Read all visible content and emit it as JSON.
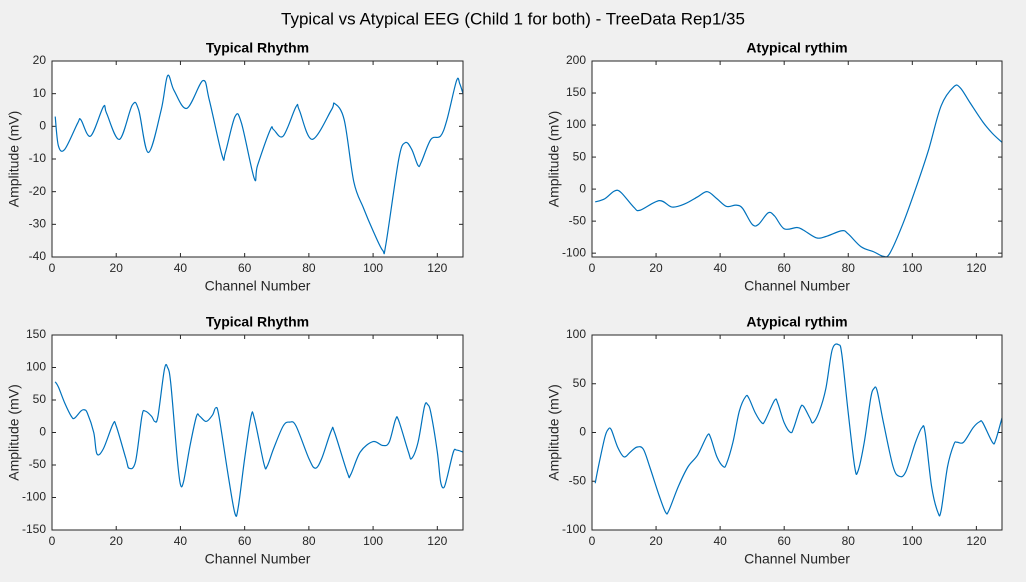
{
  "title": "Typical vs Atypical EEG (Child 1 for both) - TreeData Rep1/35",
  "chart_data": [
    {
      "type": "line",
      "title": "Typical Rhythm",
      "xlabel": "Channel Number",
      "ylabel": "Amplitude (mV)",
      "color": "#0072bd",
      "xlim": [
        0,
        128
      ],
      "xticks": [
        0,
        20,
        40,
        60,
        80,
        100,
        120
      ],
      "ylim": [
        -40,
        20
      ],
      "yticks": [
        -40,
        -30,
        -20,
        -10,
        0,
        10,
        20
      ],
      "x": [
        1,
        2,
        4,
        8,
        9,
        12,
        16,
        17,
        21,
        25,
        27,
        30,
        34,
        36,
        38,
        42,
        47,
        49,
        53,
        54,
        57,
        59,
        63,
        64,
        68,
        69,
        72,
        76,
        77,
        81,
        87,
        88,
        91,
        94,
        97,
        100,
        103,
        104,
        108,
        110,
        112,
        114,
        115,
        118,
        121,
        123,
        126,
        127,
        128
      ],
      "values": [
        3,
        -6,
        -7,
        1,
        2,
        -3,
        6,
        4,
        -4,
        6.5,
        5,
        -8,
        5,
        15.5,
        11,
        5.5,
        14,
        8,
        -9,
        -8,
        3,
        1,
        -16,
        -12,
        -1,
        -1,
        -3,
        6,
        5,
        -4,
        5,
        7,
        2,
        -17,
        -25,
        -32,
        -38,
        -36,
        -10,
        -5,
        -7,
        -12,
        -11,
        -4,
        -3,
        2,
        14,
        13,
        10
      ]
    },
    {
      "type": "line",
      "title": "Atypical rythim",
      "xlabel": "Channel Number",
      "ylabel": "Amplitude (mV)",
      "color": "#0072bd",
      "xlim": [
        0,
        128
      ],
      "xticks": [
        0,
        20,
        40,
        60,
        80,
        100,
        120
      ],
      "ylim": [
        -106,
        200
      ],
      "yticks": [
        -100,
        -50,
        0,
        50,
        100,
        150,
        200
      ],
      "x": [
        1,
        4,
        7,
        9,
        13,
        15,
        21,
        25,
        29,
        33,
        36,
        39,
        42,
        45,
        47,
        50,
        52,
        55,
        57,
        60,
        64,
        66,
        70,
        73,
        78,
        80,
        84,
        88,
        91,
        93,
        97,
        101,
        105,
        109,
        113,
        115,
        118,
        122,
        125,
        128
      ],
      "values": [
        -20,
        -15,
        -3,
        -5,
        -28,
        -33,
        -18,
        -28,
        -23,
        -12,
        -4,
        -15,
        -27,
        -25,
        -30,
        -55,
        -55,
        -37,
        -42,
        -62,
        -60,
        -64,
        -76,
        -74,
        -65,
        -70,
        -90,
        -98,
        -105,
        -100,
        -55,
        0,
        60,
        130,
        160,
        158,
        135,
        105,
        87,
        73
      ]
    },
    {
      "type": "line",
      "title": "Typical Rhythm",
      "xlabel": "Channel Number",
      "ylabel": "Amplitude (mV)",
      "color": "#0072bd",
      "xlim": [
        0,
        128
      ],
      "xticks": [
        0,
        20,
        40,
        60,
        80,
        100,
        120
      ],
      "ylim": [
        -150,
        150
      ],
      "yticks": [
        -150,
        -100,
        -50,
        0,
        50,
        100,
        150
      ],
      "x": [
        1,
        2,
        4,
        6,
        7,
        9,
        10,
        11,
        13,
        14,
        16,
        19,
        20,
        23,
        24,
        26,
        28,
        29,
        31,
        32,
        33,
        35,
        36,
        37,
        39,
        40,
        41,
        43,
        45,
        46,
        48,
        50,
        51,
        52,
        55,
        57,
        58,
        60,
        62,
        63,
        66,
        67,
        69,
        72,
        74,
        76,
        80,
        82,
        84,
        87,
        88,
        92,
        93,
        96,
        100,
        103,
        105,
        107,
        108,
        111,
        112,
        114,
        116,
        117,
        118,
        120,
        121,
        122,
        123,
        125,
        126,
        128
      ],
      "values": [
        78,
        70,
        45,
        25,
        22,
        33,
        35,
        30,
        0,
        -33,
        -25,
        13,
        10,
        -40,
        -55,
        -45,
        25,
        33,
        25,
        17,
        25,
        97,
        100,
        75,
        -40,
        -80,
        -75,
        -20,
        25,
        25,
        17,
        27,
        38,
        25,
        -70,
        -125,
        -115,
        -40,
        25,
        22,
        -48,
        -52,
        -25,
        10,
        16,
        10,
        -40,
        -55,
        -40,
        3,
        0,
        -62,
        -65,
        -30,
        -14,
        -20,
        -15,
        20,
        18,
        -30,
        -40,
        -15,
        40,
        43,
        30,
        -30,
        -75,
        -85,
        -70,
        -30,
        -27,
        -30
      ]
    },
    {
      "type": "line",
      "title": "Atypical rythim",
      "xlabel": "Channel Number",
      "ylabel": "Amplitude (mV)",
      "color": "#0072bd",
      "xlim": [
        0,
        128
      ],
      "xticks": [
        0,
        20,
        40,
        60,
        80,
        100,
        120
      ],
      "ylim": [
        -100,
        100
      ],
      "yticks": [
        -100,
        -50,
        0,
        50,
        100
      ],
      "x": [
        1,
        2,
        4,
        5,
        6,
        8,
        10,
        12,
        14,
        16,
        18,
        21,
        23,
        24,
        27,
        30,
        33,
        36,
        37,
        39,
        41,
        42,
        44,
        46,
        48,
        49,
        51,
        53,
        54,
        57,
        58,
        60,
        62,
        63,
        65,
        66,
        68,
        69,
        71,
        73,
        75,
        77,
        78,
        80,
        82,
        83,
        85,
        87,
        88,
        89,
        91,
        94,
        96,
        98,
        101,
        103,
        104,
        106,
        108,
        109,
        111,
        113,
        114,
        116,
        119,
        121,
        122,
        125,
        126,
        128
      ],
      "values": [
        -52,
        -35,
        -5,
        3,
        3,
        -15,
        -25,
        -20,
        -15,
        -17,
        -35,
        -65,
        -82,
        -80,
        -55,
        -35,
        -23,
        -3,
        -5,
        -25,
        -35,
        -32,
        -10,
        22,
        37,
        35,
        20,
        10,
        12,
        33,
        30,
        10,
        0,
        5,
        25,
        27,
        15,
        10,
        22,
        45,
        85,
        90,
        80,
        20,
        -35,
        -40,
        -10,
        35,
        45,
        43,
        10,
        -35,
        -45,
        -40,
        -10,
        5,
        0,
        -55,
        -82,
        -80,
        -35,
        -12,
        -10,
        -10,
        5,
        11,
        10,
        -10,
        -8,
        15
      ]
    }
  ]
}
